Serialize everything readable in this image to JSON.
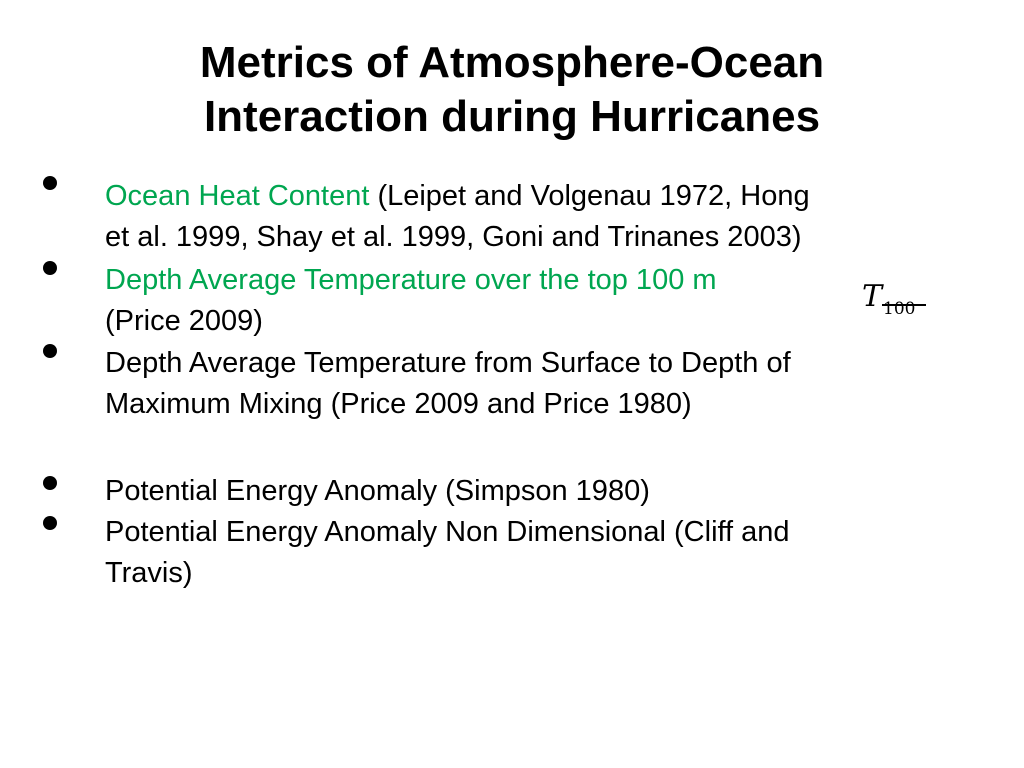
{
  "title": {
    "line1": "Metrics of Atmosphere-Ocean",
    "line2": "Interaction during Hurricanes"
  },
  "bullets": [
    {
      "highlight": "Ocean Heat Content",
      "rest_line1": " (Leipet and Volgenau 1972, Hong",
      "line2": "et al. 1999, Shay et al. 1999, Goni and Trinanes 2003)"
    },
    {
      "highlight": "Depth Average Temperature over the top 100 m",
      "line2": "(Price 2009)"
    },
    {
      "line1": "Depth Average Temperature from Surface to Depth of",
      "line2": "Maximum Mixing (Price 2009 and Price 1980)"
    },
    {
      "line1": "Potential Energy Anomaly (Simpson 1980)"
    },
    {
      "line1": "Potential Energy Anomaly Non Dimensional (Cliff and",
      "line2": "Travis)"
    }
  ],
  "formula": {
    "symbol": "T",
    "subscript": "100"
  },
  "colors": {
    "highlight": "#00a650",
    "text": "#000000",
    "background": "#ffffff"
  }
}
